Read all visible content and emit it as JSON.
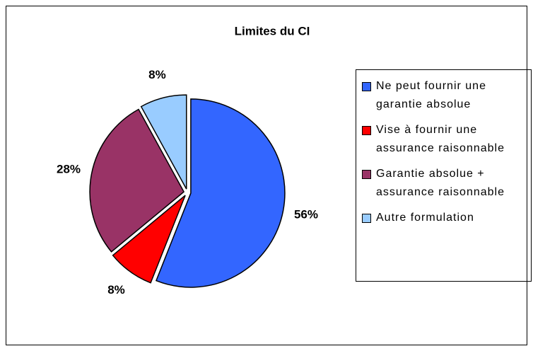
{
  "chart_data": {
    "type": "pie",
    "title": "Limites du CI",
    "categories": [
      "Ne peut fournir une garantie absolue",
      "Vise à fournir une assurance raisonnable",
      "Garantie absolue + assurance raisonnable",
      "Autre formulation"
    ],
    "values": [
      56,
      8,
      28,
      8
    ],
    "value_labels": [
      "56%",
      "8%",
      "28%",
      "8%"
    ],
    "colors": [
      "#3366ff",
      "#ff0000",
      "#993366",
      "#99ccff"
    ],
    "legend": "right"
  }
}
